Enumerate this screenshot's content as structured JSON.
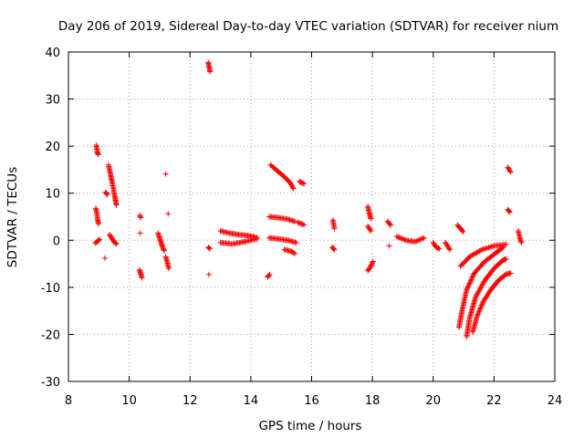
{
  "chart_data": {
    "type": "scatter",
    "title": "Day 206 of 2019, Sidereal Day-to-day VTEC variation (SDTVAR) for receiver nium",
    "xlabel": "GPS time / hours",
    "ylabel": "SDTVAR / TECUs",
    "xlim": [
      8,
      24
    ],
    "ylim": [
      -30,
      40
    ],
    "xticks": [
      8,
      10,
      12,
      14,
      16,
      18,
      20,
      22,
      24
    ],
    "yticks": [
      -30,
      -20,
      -10,
      0,
      10,
      20,
      30,
      40
    ],
    "grid": true,
    "marker": "+",
    "series_color": "#ff0000",
    "arcs": [
      [
        [
          8.92,
          20.2
        ],
        [
          8.95,
          18.8
        ],
        [
          8.98,
          18.2
        ]
      ],
      [
        [
          8.9,
          6.8
        ],
        [
          8.93,
          6.0
        ],
        [
          8.96,
          4.5
        ],
        [
          8.99,
          3.5
        ]
      ],
      [
        [
          8.88,
          -0.6
        ],
        [
          8.95,
          -0.3
        ],
        [
          9.02,
          0.2
        ]
      ],
      [
        [
          9.2,
          -3.8
        ]
      ],
      [
        [
          9.22,
          10.2
        ],
        [
          9.28,
          9.7
        ]
      ],
      [
        [
          9.32,
          16.0
        ],
        [
          9.36,
          14.8
        ],
        [
          9.4,
          13.5
        ],
        [
          9.44,
          12.2
        ],
        [
          9.48,
          11.0
        ],
        [
          9.52,
          9.5
        ],
        [
          9.55,
          8.5
        ],
        [
          9.58,
          7.5
        ]
      ],
      [
        [
          9.35,
          1.2
        ],
        [
          9.42,
          0.5
        ],
        [
          9.5,
          -0.3
        ],
        [
          9.58,
          -0.8
        ]
      ],
      [
        [
          10.35,
          5.3
        ],
        [
          10.38,
          4.8
        ]
      ],
      [
        [
          10.36,
          1.5
        ]
      ],
      [
        [
          10.34,
          -6.3
        ],
        [
          10.38,
          -7.2
        ],
        [
          10.42,
          -8.0
        ]
      ],
      [
        [
          10.95,
          1.5
        ],
        [
          11.0,
          0.5
        ],
        [
          11.05,
          -0.5
        ],
        [
          11.1,
          -1.5
        ],
        [
          11.15,
          -2.2
        ]
      ],
      [
        [
          11.2,
          14.1
        ]
      ],
      [
        [
          11.28,
          5.6
        ]
      ],
      [
        [
          11.2,
          -3.5
        ],
        [
          11.25,
          -4.6
        ],
        [
          11.3,
          -6.0
        ]
      ],
      [
        [
          12.6,
          37.8
        ],
        [
          12.63,
          36.8
        ],
        [
          12.66,
          35.8
        ]
      ],
      [
        [
          12.6,
          -1.5
        ],
        [
          12.65,
          -1.8
        ]
      ],
      [
        [
          12.62,
          -7.3
        ]
      ],
      [
        [
          13.0,
          2.0
        ],
        [
          13.3,
          1.5
        ],
        [
          13.6,
          1.2
        ],
        [
          13.9,
          1.0
        ],
        [
          14.2,
          0.6
        ]
      ],
      [
        [
          13.0,
          -0.5
        ],
        [
          13.4,
          -0.8
        ],
        [
          13.8,
          -0.3
        ],
        [
          14.2,
          0.3
        ]
      ],
      [
        [
          14.55,
          -7.8
        ],
        [
          14.62,
          -7.3
        ]
      ],
      [
        [
          14.6,
          5.0
        ],
        [
          14.9,
          4.8
        ],
        [
          15.2,
          4.5
        ],
        [
          15.45,
          4.0
        ]
      ],
      [
        [
          14.6,
          0.5
        ],
        [
          14.9,
          0.3
        ],
        [
          15.2,
          0.0
        ],
        [
          15.5,
          -0.5
        ]
      ],
      [
        [
          15.1,
          -2.0
        ],
        [
          15.3,
          -2.3
        ],
        [
          15.45,
          -2.8
        ]
      ],
      [
        [
          14.65,
          16.0
        ],
        [
          14.9,
          14.6
        ],
        [
          15.1,
          13.5
        ],
        [
          15.3,
          12.2
        ],
        [
          15.4,
          11.0
        ]
      ],
      [
        [
          15.6,
          12.5
        ],
        [
          15.75,
          12.0
        ]
      ],
      [
        [
          15.55,
          3.8
        ],
        [
          15.75,
          3.3
        ]
      ],
      [
        [
          16.7,
          4.3
        ],
        [
          16.75,
          2.5
        ]
      ],
      [
        [
          16.68,
          -1.5
        ],
        [
          16.75,
          -2.0
        ]
      ],
      [
        [
          17.85,
          7.2
        ],
        [
          17.9,
          5.8
        ],
        [
          17.95,
          4.6
        ]
      ],
      [
        [
          17.85,
          3.0
        ],
        [
          17.95,
          2.0
        ]
      ],
      [
        [
          17.85,
          -6.5
        ],
        [
          17.95,
          -5.5
        ],
        [
          18.02,
          -4.5
        ]
      ],
      [
        [
          18.5,
          4.0
        ],
        [
          18.6,
          3.2
        ]
      ],
      [
        [
          18.55,
          -1.2
        ]
      ],
      [
        [
          18.8,
          0.8
        ],
        [
          19.1,
          0.0
        ],
        [
          19.4,
          -0.3
        ],
        [
          19.7,
          0.5
        ]
      ],
      [
        [
          20.0,
          -0.5
        ],
        [
          20.1,
          -1.5
        ],
        [
          20.2,
          -1.8
        ]
      ],
      [
        [
          20.4,
          -0.5
        ],
        [
          20.5,
          -1.5
        ],
        [
          20.55,
          -2.0
        ]
      ],
      [
        [
          20.8,
          3.2
        ],
        [
          20.9,
          2.5
        ],
        [
          20.98,
          1.8
        ]
      ],
      [
        [
          20.85,
          -18.5
        ],
        [
          20.95,
          -15.0
        ],
        [
          21.1,
          -10.5
        ],
        [
          21.35,
          -7.0
        ],
        [
          21.7,
          -4.5
        ],
        [
          22.0,
          -3.0
        ],
        [
          22.2,
          -2.0
        ],
        [
          22.3,
          -1.5
        ]
      ],
      [
        [
          21.1,
          -20.5
        ],
        [
          21.2,
          -16.5
        ],
        [
          21.4,
          -12.0
        ],
        [
          21.7,
          -8.5
        ],
        [
          22.0,
          -6.0
        ],
        [
          22.3,
          -4.2
        ],
        [
          22.4,
          -4.0
        ]
      ],
      [
        [
          21.3,
          -19.5
        ],
        [
          21.45,
          -16.0
        ],
        [
          21.65,
          -13.0
        ],
        [
          21.9,
          -10.5
        ],
        [
          22.15,
          -8.5
        ],
        [
          22.4,
          -7.2
        ],
        [
          22.55,
          -7.0
        ]
      ],
      [
        [
          20.9,
          -5.5
        ],
        [
          21.2,
          -3.5
        ],
        [
          21.6,
          -2.0
        ],
        [
          22.0,
          -1.2
        ],
        [
          22.4,
          -0.9
        ]
      ],
      [
        [
          22.45,
          15.5
        ],
        [
          22.55,
          14.5
        ]
      ],
      [
        [
          22.45,
          6.5
        ],
        [
          22.52,
          6.0
        ]
      ],
      [
        [
          22.8,
          2.0
        ],
        [
          22.85,
          0.5
        ],
        [
          22.9,
          -0.5
        ]
      ]
    ]
  }
}
